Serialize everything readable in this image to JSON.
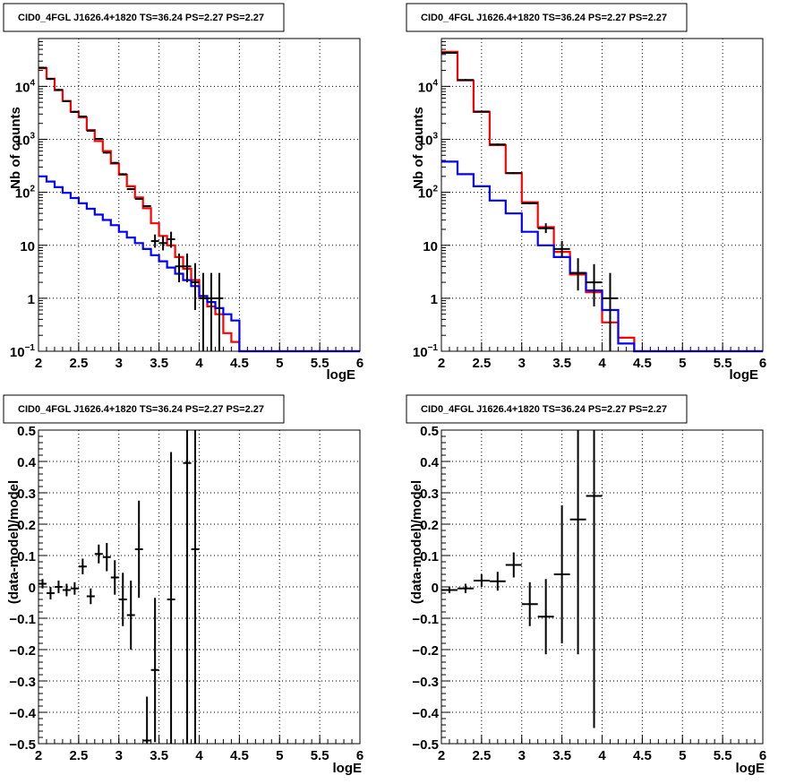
{
  "colors": {
    "data": "#000000",
    "model_total": "#ff0000",
    "model_component": "#0000ff"
  },
  "chart_data": [
    {
      "type": "line",
      "title": "CID0_4FGL J1626.4+1820 TS=36.24 PS=2.27 PS=2.27",
      "xlabel": "logE",
      "ylabel": "Nb of counts",
      "xlim": [
        2,
        6
      ],
      "ylim": [
        0.1,
        80000
      ],
      "yscale": "log",
      "grid": true,
      "x_ticks": [
        "2",
        "2.5",
        "3",
        "3.5",
        "4",
        "4.5",
        "5",
        "5.5",
        "6"
      ],
      "y_ticks": [
        {
          "base": "10",
          "exp": "−1"
        },
        {
          "base": "1",
          "exp": ""
        },
        {
          "base": "10",
          "exp": ""
        },
        {
          "base": "10",
          "exp": "2"
        },
        {
          "base": "10",
          "exp": "3"
        },
        {
          "base": "10",
          "exp": "4"
        }
      ],
      "bin_edges": [
        2.0,
        2.1,
        2.2,
        2.3,
        2.4,
        2.5,
        2.6,
        2.7,
        2.8,
        2.9,
        3.0,
        3.1,
        3.2,
        3.3,
        3.4,
        3.5,
        3.6,
        3.7,
        3.8,
        3.9,
        4.0,
        4.1,
        4.2,
        4.3,
        4.4,
        4.5,
        4.6,
        4.7,
        4.8,
        4.9,
        5.0,
        5.1,
        5.2,
        5.3,
        5.4,
        5.5,
        5.6,
        5.7,
        5.8,
        5.9,
        6.0
      ],
      "series": [
        {
          "role": "model_total",
          "values": [
            22000,
            14000,
            8500,
            5300,
            3300,
            2600,
            1500,
            930,
            600,
            350,
            215,
            130,
            80,
            50,
            26,
            15,
            10,
            6,
            3.6,
            2.2,
            1.0,
            0.7,
            0.5,
            0.22,
            0.15,
            0.1,
            0.1,
            0.1,
            0.1,
            0.1,
            0.1,
            0.1,
            0.1,
            0.1,
            0.1,
            0.1,
            0.1,
            0.1,
            0.1,
            0.1
          ]
        },
        {
          "role": "model_component",
          "values": [
            200,
            160,
            125,
            98,
            78,
            62,
            49,
            38,
            30,
            24,
            18,
            14,
            11,
            8.5,
            6.5,
            5.0,
            3.8,
            2.9,
            2.2,
            1.7,
            1.1,
            0.85,
            0.65,
            0.5,
            0.38,
            0.1,
            0.1,
            0.1,
            0.1,
            0.1,
            0.1,
            0.1,
            0.1,
            0.1,
            0.1,
            0.1,
            0.1,
            0.1,
            0.1,
            0.1
          ]
        }
      ],
      "points": [
        {
          "x": 2.05,
          "y": 22500
        },
        {
          "x": 2.15,
          "y": 13800
        },
        {
          "x": 2.25,
          "y": 8600
        },
        {
          "x": 2.35,
          "y": 5250
        },
        {
          "x": 2.45,
          "y": 3300
        },
        {
          "x": 2.55,
          "y": 2700
        },
        {
          "x": 2.65,
          "y": 1450
        },
        {
          "x": 2.75,
          "y": 1020
        },
        {
          "x": 2.85,
          "y": 560
        },
        {
          "x": 2.95,
          "y": 360
        },
        {
          "x": 3.05,
          "y": 220
        },
        {
          "x": 3.15,
          "y": 115
        },
        {
          "x": 3.25,
          "y": 75
        },
        {
          "x": 3.35,
          "y": 55
        },
        {
          "x": 3.45,
          "y": 12,
          "yerr": [
            3,
            4
          ]
        },
        {
          "x": 3.55,
          "y": 11,
          "yerr": [
            3,
            4
          ]
        },
        {
          "x": 3.65,
          "y": 13,
          "yerr": [
            4,
            5
          ]
        },
        {
          "x": 3.75,
          "y": 4,
          "yerr": [
            2,
            3
          ]
        },
        {
          "x": 3.85,
          "y": 4,
          "yerr": [
            2,
            3
          ]
        },
        {
          "x": 3.95,
          "y": 2,
          "yerr": [
            1.4,
            2.6
          ]
        },
        {
          "x": 4.05,
          "y": 1,
          "yerr": [
            0.9,
            2
          ]
        },
        {
          "x": 4.15,
          "y": 1,
          "yerr": [
            0.9,
            2
          ]
        },
        {
          "x": 4.25,
          "y": 1,
          "yerr": [
            0.9,
            2
          ]
        }
      ]
    },
    {
      "type": "line",
      "title": "CID0_4FGL J1626.4+1820 TS=36.24 PS=2.27 PS=2.27",
      "xlabel": "logE",
      "ylabel": "Nb of counts",
      "xlim": [
        2,
        6
      ],
      "ylim": [
        0.1,
        80000
      ],
      "yscale": "log",
      "grid": true,
      "x_ticks": [
        "2",
        "2.5",
        "3",
        "3.5",
        "4",
        "4.5",
        "5",
        "5.5",
        "6"
      ],
      "y_ticks": [
        {
          "base": "10",
          "exp": "−1"
        },
        {
          "base": "1",
          "exp": ""
        },
        {
          "base": "10",
          "exp": ""
        },
        {
          "base": "10",
          "exp": "2"
        },
        {
          "base": "10",
          "exp": "3"
        },
        {
          "base": "10",
          "exp": "4"
        }
      ],
      "bin_edges": [
        2.0,
        2.2,
        2.4,
        2.6,
        2.8,
        3.0,
        3.2,
        3.4,
        3.6,
        3.8,
        4.0,
        4.2,
        4.4,
        4.6,
        4.8,
        5.0,
        5.2,
        5.4,
        5.6,
        5.8,
        6.0
      ],
      "series": [
        {
          "role": "model_total",
          "values": [
            45000,
            13000,
            3300,
            780,
            230,
            65,
            22,
            7.5,
            2.8,
            1.3,
            0.35,
            0.18,
            0.1,
            0.1,
            0.1,
            0.1,
            0.1,
            0.1,
            0.1,
            0.1
          ]
        },
        {
          "role": "model_component",
          "values": [
            380,
            220,
            130,
            70,
            40,
            18,
            10,
            6.0,
            3.0,
            1.4,
            0.6,
            0.14,
            0.1,
            0.1,
            0.1,
            0.1,
            0.1,
            0.1,
            0.1,
            0.1
          ]
        }
      ],
      "points": [
        {
          "x": 2.1,
          "y": 43000
        },
        {
          "x": 2.3,
          "y": 13200
        },
        {
          "x": 2.5,
          "y": 3350
        },
        {
          "x": 2.7,
          "y": 800
        },
        {
          "x": 2.9,
          "y": 230
        },
        {
          "x": 3.1,
          "y": 62
        },
        {
          "x": 3.3,
          "y": 21,
          "yerr": [
            4,
            5
          ]
        },
        {
          "x": 3.5,
          "y": 8.5,
          "yerr": [
            2.5,
            3.5
          ]
        },
        {
          "x": 3.7,
          "y": 3,
          "yerr": [
            1.6,
            2.7
          ]
        },
        {
          "x": 3.9,
          "y": 2,
          "yerr": [
            1.3,
            2.4
          ]
        },
        {
          "x": 4.1,
          "y": 1,
          "yerr": [
            0.9,
            2
          ]
        }
      ]
    },
    {
      "type": "scatter",
      "title": "CID0_4FGL J1626.4+1820 TS=36.24 PS=2.27 PS=2.27",
      "xlabel": "logE",
      "ylabel": "(data-model)/model",
      "xlim": [
        2,
        6
      ],
      "ylim": [
        -0.5,
        0.5
      ],
      "grid": true,
      "x_ticks": [
        "2",
        "2.5",
        "3",
        "3.5",
        "4",
        "4.5",
        "5",
        "5.5",
        "6"
      ],
      "y_ticks": [
        "−0.5",
        "−0.4",
        "−0.3",
        "−0.2",
        "−0.1",
        "0",
        "0.1",
        "0.2",
        "0.3",
        "0.4",
        "0.5"
      ],
      "xerr": 0.05,
      "points": [
        {
          "x": 2.05,
          "y": 0.01,
          "err": 0.015
        },
        {
          "x": 2.15,
          "y": -0.02,
          "err": 0.02
        },
        {
          "x": 2.25,
          "y": 0.0,
          "err": 0.02
        },
        {
          "x": 2.35,
          "y": -0.01,
          "err": 0.02
        },
        {
          "x": 2.45,
          "y": -0.005,
          "err": 0.02
        },
        {
          "x": 2.55,
          "y": 0.065,
          "err": 0.025
        },
        {
          "x": 2.65,
          "y": -0.03,
          "err": 0.025
        },
        {
          "x": 2.75,
          "y": 0.105,
          "err": 0.03
        },
        {
          "x": 2.85,
          "y": 0.095,
          "err": 0.045
        },
        {
          "x": 2.95,
          "y": 0.03,
          "err": 0.055
        },
        {
          "x": 3.05,
          "y": -0.04,
          "err": 0.085
        },
        {
          "x": 3.15,
          "y": -0.09,
          "err": 0.11
        },
        {
          "x": 3.25,
          "y": 0.12,
          "err": 0.155
        },
        {
          "x": 3.35,
          "y": -0.49,
          "err": 0.14
        },
        {
          "x": 3.45,
          "y": -0.265,
          "err": 0.23
        },
        {
          "x": 3.65,
          "y": -0.04,
          "err": 0.47
        },
        {
          "x": 3.85,
          "y": 0.395,
          "err": 0.9
        },
        {
          "x": 3.95,
          "y": 0.12,
          "err": 0.9
        }
      ]
    },
    {
      "type": "scatter",
      "title": "CID0_4FGL J1626.4+1820 TS=36.24 PS=2.27 PS=2.27",
      "xlabel": "logE",
      "ylabel": "(data-model)/model",
      "xlim": [
        2,
        6
      ],
      "ylim": [
        -0.5,
        0.5
      ],
      "grid": true,
      "x_ticks": [
        "2",
        "2.5",
        "3",
        "3.5",
        "4",
        "4.5",
        "5",
        "5.5",
        "6"
      ],
      "y_ticks": [
        "−0.5",
        "−0.4",
        "−0.3",
        "−0.2",
        "−0.1",
        "0",
        "0.1",
        "0.2",
        "0.3",
        "0.4",
        "0.5"
      ],
      "xerr": 0.1,
      "points": [
        {
          "x": 2.1,
          "y": -0.01,
          "err": 0.01
        },
        {
          "x": 2.3,
          "y": -0.005,
          "err": 0.015
        },
        {
          "x": 2.5,
          "y": 0.02,
          "err": 0.02
        },
        {
          "x": 2.7,
          "y": 0.018,
          "err": 0.03
        },
        {
          "x": 2.9,
          "y": 0.07,
          "err": 0.04
        },
        {
          "x": 3.1,
          "y": -0.055,
          "err": 0.07
        },
        {
          "x": 3.3,
          "y": -0.095,
          "err": 0.12
        },
        {
          "x": 3.5,
          "y": 0.04,
          "err": 0.22
        },
        {
          "x": 3.7,
          "y": 0.215,
          "err": 0.43
        },
        {
          "x": 3.9,
          "y": 0.29,
          "err": 0.74
        }
      ]
    }
  ]
}
